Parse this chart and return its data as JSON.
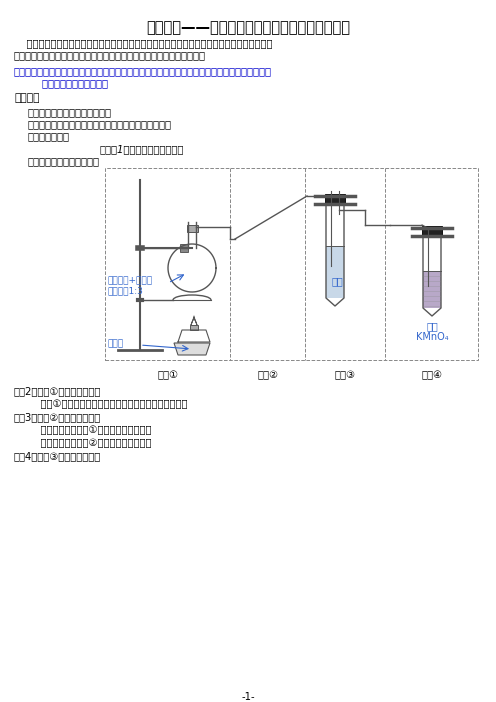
{
  "title": "高中化学——从实验室制备乙烯到实验室制备乙炔",
  "intro_line1": "    同学们好，本节课我们将复习实验室制备乙烯的实验，整理、总结气体制备类实验的装置如何",
  "intro_line2": "组成的一般思路，最后我们应用迁移的方法讨论如何在实验室制备乙炔。",
  "task_line1": "任务一、复习实验室制备乙烯的实验，总结化学实验报告的基本要素有哪些？总结气体制备类实验",
  "task_line2": "        的装置由哪几部分组成？",
  "review_title": "【复习】",
  "item1": "一、实验名称：乙烯的制备实验",
  "item2": "二、实验目的：制备纯净的乙烯气体，并检验、收集。",
  "item3": "三、实验原理：",
  "item4": "（问题1，写出化学方程式。）",
  "item5": "四、实验仪器装置、药品：",
  "device_labels": [
    "装置①",
    "装置②",
    "装置③",
    "装置④"
  ],
  "ann1_line1": "无水乙醇+浓硫酸",
  "ann1_line2": "体积比＝1:3",
  "ann2": "碎瓷片",
  "ann3": "溴水",
  "ann4_line1": "酸性",
  "ann4_line2": "KMnO₄",
  "q1": "问题2、装置①的作用是什么？",
  "q2": "    装置①中需要一支温度计，在图中画出温度计的位置。",
  "q3": "问题3、装置②的作用是什么？",
  "q4": "    （可根据六中装置①的实验现象思考。）",
  "q5": "    在虚线框内将装置②画出，并标明试剂。",
  "q6": "问题4、装置③的作用是什么？",
  "page_num": "-1-",
  "bg": "#ffffff",
  "black": "#000000",
  "blue": "#0000cc",
  "ann_blue": "#3366cc",
  "gray": "#888888"
}
